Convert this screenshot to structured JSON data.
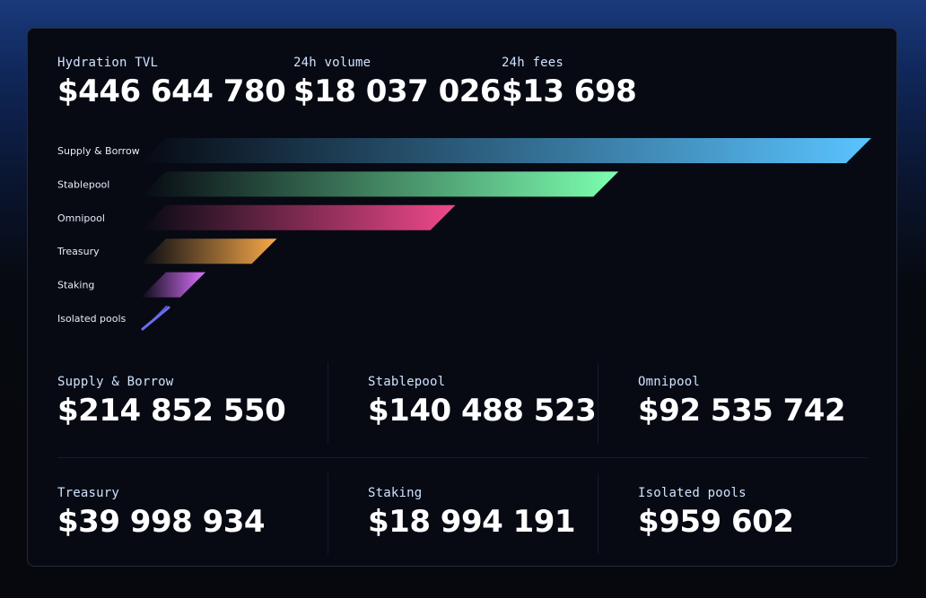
{
  "header": {
    "tvl_label": "Hydration TVL",
    "tvl_value": "$446 644 780",
    "volume_label": "24h volume",
    "volume_value": "$18 037 026",
    "fees_label": "24h fees",
    "fees_value": "$13 698"
  },
  "chart_data": {
    "type": "bar",
    "orientation": "horizontal",
    "categories": [
      "Supply & Borrow",
      "Stablepool",
      "Omnipool",
      "Treasury",
      "Staking",
      "Isolated pools"
    ],
    "values": [
      214852550,
      140488523,
      92535742,
      39998934,
      18994191,
      959602
    ],
    "colors": [
      "#5ac4ff",
      "#7dffb0",
      "#f0498a",
      "#f9a94a",
      "#df72ff",
      "#6d6cf0"
    ],
    "xlim": [
      0,
      214852550
    ],
    "grid": false
  },
  "breakdown": [
    {
      "label": "Supply & Borrow",
      "value": "$214 852 550"
    },
    {
      "label": "Stablepool",
      "value": "$140 488 523"
    },
    {
      "label": "Omnipool",
      "value": "$92 535 742"
    },
    {
      "label": "Treasury",
      "value": "$39 998 934"
    },
    {
      "label": "Staking",
      "value": "$18 994 191"
    },
    {
      "label": "Isolated pools",
      "value": "$959 602"
    }
  ]
}
